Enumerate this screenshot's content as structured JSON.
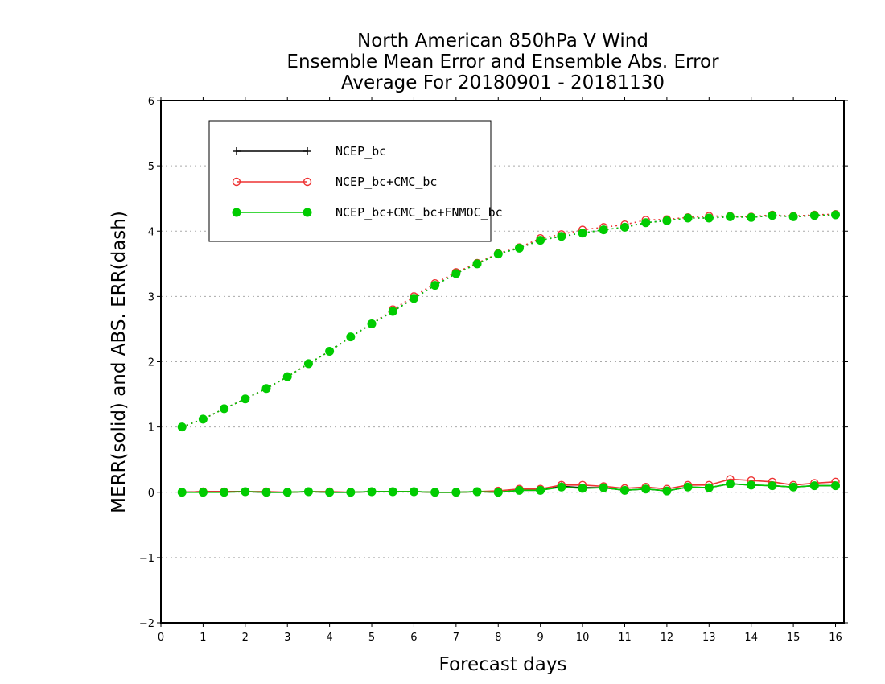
{
  "chart_data": {
    "type": "line",
    "title": [
      "North American 850hPa V Wind",
      "Ensemble Mean Error and Ensemble Abs. Error",
      "Average For 20180901 - 20181130"
    ],
    "xlabel": "Forecast days",
    "ylabel": "MERR(solid) and ABS. ERR(dash)",
    "xlim": [
      0,
      16.2
    ],
    "ylim": [
      -2,
      6
    ],
    "xticks": [
      0,
      1,
      2,
      3,
      4,
      5,
      6,
      7,
      8,
      9,
      10,
      11,
      12,
      13,
      14,
      15,
      16
    ],
    "yticks": [
      -2,
      -1,
      0,
      1,
      2,
      3,
      4,
      5,
      6
    ],
    "grid": "horizontal dotted",
    "legend_position": "top-left",
    "x": [
      0.5,
      1,
      1.5,
      2,
      2.5,
      3,
      3.5,
      4,
      4.5,
      5,
      5.5,
      6,
      6.5,
      7,
      7.5,
      8,
      8.5,
      9,
      9.5,
      10,
      10.5,
      11,
      11.5,
      12,
      12.5,
      13,
      13.5,
      14,
      14.5,
      15,
      15.5,
      16
    ],
    "series": [
      {
        "name": "NCEP_bc",
        "color": "#000000",
        "marker": "plus",
        "merr": [
          0.0,
          0.01,
          0.01,
          0.01,
          0.0,
          0.0,
          0.01,
          0.0,
          0.0,
          0.01,
          0.01,
          0.01,
          0.0,
          0.0,
          0.01,
          0.0,
          0.03,
          0.03,
          0.09,
          0.07,
          0.07,
          0.03,
          0.05,
          0.02,
          0.08,
          0.07,
          0.13,
          0.11,
          0.1,
          0.08,
          0.1,
          0.1
        ],
        "abserr": [
          1.0,
          1.12,
          1.28,
          1.43,
          1.59,
          1.77,
          1.97,
          2.16,
          2.38,
          2.58,
          2.77,
          2.97,
          3.17,
          3.35,
          3.5,
          3.65,
          3.74,
          3.86,
          3.92,
          3.97,
          4.02,
          4.06,
          4.13,
          4.16,
          4.2,
          4.2,
          4.22,
          4.21,
          4.24,
          4.22,
          4.24,
          4.25
        ]
      },
      {
        "name": "NCEP_bc+CMC_bc",
        "color": "#ee3333",
        "marker": "open-circle",
        "merr": [
          0.0,
          0.01,
          0.01,
          0.01,
          0.01,
          0.0,
          0.01,
          0.01,
          0.0,
          0.01,
          0.01,
          0.01,
          0.0,
          0.0,
          0.01,
          0.02,
          0.05,
          0.05,
          0.11,
          0.11,
          0.09,
          0.06,
          0.08,
          0.05,
          0.11,
          0.11,
          0.2,
          0.18,
          0.16,
          0.11,
          0.14,
          0.16
        ],
        "abserr": [
          1.0,
          1.12,
          1.28,
          1.43,
          1.59,
          1.77,
          1.97,
          2.16,
          2.38,
          2.58,
          2.8,
          3.0,
          3.2,
          3.37,
          3.51,
          3.66,
          3.75,
          3.89,
          3.95,
          4.02,
          4.06,
          4.1,
          4.17,
          4.18,
          4.21,
          4.23,
          4.23,
          4.22,
          4.25,
          4.23,
          4.25,
          4.26
        ]
      },
      {
        "name": "NCEP_bc+CMC_bc+FNMOC_bc",
        "color": "#00cc00",
        "marker": "filled-circle",
        "merr": [
          0.0,
          0.0,
          0.0,
          0.01,
          0.0,
          0.0,
          0.01,
          0.0,
          0.0,
          0.01,
          0.01,
          0.01,
          0.0,
          0.0,
          0.01,
          0.0,
          0.03,
          0.03,
          0.08,
          0.06,
          0.07,
          0.03,
          0.05,
          0.02,
          0.08,
          0.07,
          0.13,
          0.11,
          0.1,
          0.08,
          0.1,
          0.1
        ],
        "abserr": [
          1.0,
          1.12,
          1.28,
          1.43,
          1.59,
          1.77,
          1.97,
          2.16,
          2.38,
          2.58,
          2.77,
          2.97,
          3.17,
          3.35,
          3.5,
          3.65,
          3.74,
          3.86,
          3.92,
          3.97,
          4.02,
          4.06,
          4.13,
          4.16,
          4.2,
          4.2,
          4.22,
          4.21,
          4.24,
          4.22,
          4.24,
          4.25
        ]
      }
    ]
  }
}
